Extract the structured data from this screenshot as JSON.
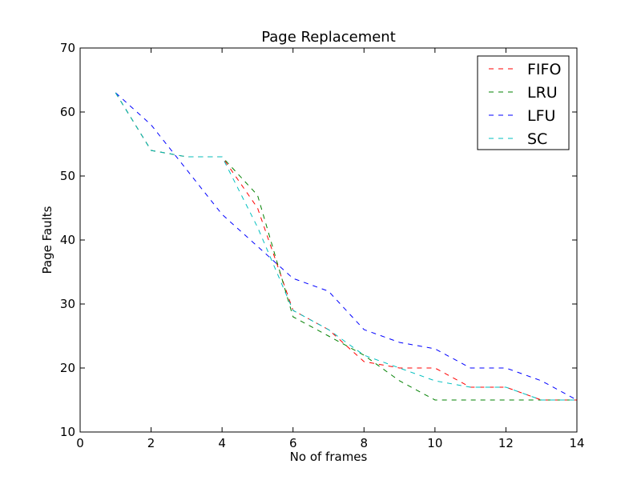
{
  "chart_data": {
    "type": "line",
    "title": "Page Replacement",
    "xlabel": "No of frames",
    "ylabel": "Page Faults",
    "xlim": [
      0,
      14
    ],
    "ylim": [
      10,
      70
    ],
    "xticks": [
      0,
      2,
      4,
      6,
      8,
      10,
      12,
      14
    ],
    "yticks": [
      10,
      20,
      30,
      40,
      50,
      60,
      70
    ],
    "grid": false,
    "legend_position": "top-right",
    "x": [
      1,
      2,
      3,
      4,
      5,
      6,
      7,
      8,
      9,
      10,
      11,
      12,
      13,
      14
    ],
    "series": [
      {
        "name": "FIFO",
        "color": "#ff0000",
        "style": "dashed",
        "values": [
          63,
          54,
          53,
          53,
          45,
          29,
          26,
          21,
          20,
          20,
          17,
          17,
          15,
          15
        ]
      },
      {
        "name": "LRU",
        "color": "#008000",
        "style": "dashed",
        "values": [
          63,
          54,
          53,
          53,
          47,
          28,
          25,
          22,
          18,
          15,
          15,
          15,
          15,
          15
        ]
      },
      {
        "name": "LFU",
        "color": "#0000ff",
        "style": "dashed",
        "values": [
          63,
          58,
          51,
          44,
          39,
          34,
          32,
          26,
          24,
          23,
          20,
          20,
          18,
          15
        ]
      },
      {
        "name": "SC",
        "color": "#00bfbf",
        "style": "dashed",
        "values": [
          63,
          54,
          53,
          53,
          42,
          29,
          26,
          22,
          20,
          18,
          17,
          17,
          15,
          15
        ]
      }
    ]
  }
}
